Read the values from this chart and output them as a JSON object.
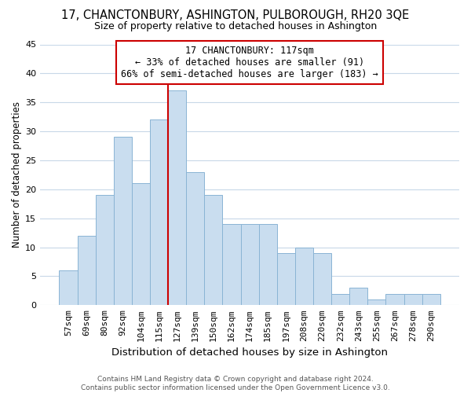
{
  "title": "17, CHANCTONBURY, ASHINGTON, PULBOROUGH, RH20 3QE",
  "subtitle": "Size of property relative to detached houses in Ashington",
  "xlabel": "Distribution of detached houses by size in Ashington",
  "ylabel": "Number of detached properties",
  "bar_labels": [
    "57sqm",
    "69sqm",
    "80sqm",
    "92sqm",
    "104sqm",
    "115sqm",
    "127sqm",
    "139sqm",
    "150sqm",
    "162sqm",
    "174sqm",
    "185sqm",
    "197sqm",
    "208sqm",
    "220sqm",
    "232sqm",
    "243sqm",
    "255sqm",
    "267sqm",
    "278sqm",
    "290sqm"
  ],
  "bar_heights": [
    6,
    12,
    19,
    29,
    21,
    32,
    37,
    23,
    19,
    14,
    14,
    14,
    9,
    10,
    9,
    2,
    3,
    1,
    2,
    2,
    2
  ],
  "bar_color": "#c9ddef",
  "bar_edge_color": "#8ab4d4",
  "vline_color": "#cc0000",
  "ylim": [
    0,
    45
  ],
  "yticks": [
    0,
    5,
    10,
    15,
    20,
    25,
    30,
    35,
    40,
    45
  ],
  "annotation_title": "17 CHANCTONBURY: 117sqm",
  "annotation_line1": "← 33% of detached houses are smaller (91)",
  "annotation_line2": "66% of semi-detached houses are larger (183) →",
  "footer_line1": "Contains HM Land Registry data © Crown copyright and database right 2024.",
  "footer_line2": "Contains public sector information licensed under the Open Government Licence v3.0.",
  "bg_color": "#ffffff",
  "plot_bg_color": "#ffffff",
  "grid_color": "#c8d8e8",
  "title_fontsize": 10.5,
  "subtitle_fontsize": 9,
  "ylabel_fontsize": 8.5,
  "xlabel_fontsize": 9.5,
  "tick_fontsize": 8,
  "annot_fontsize": 8.5,
  "footer_fontsize": 6.5
}
